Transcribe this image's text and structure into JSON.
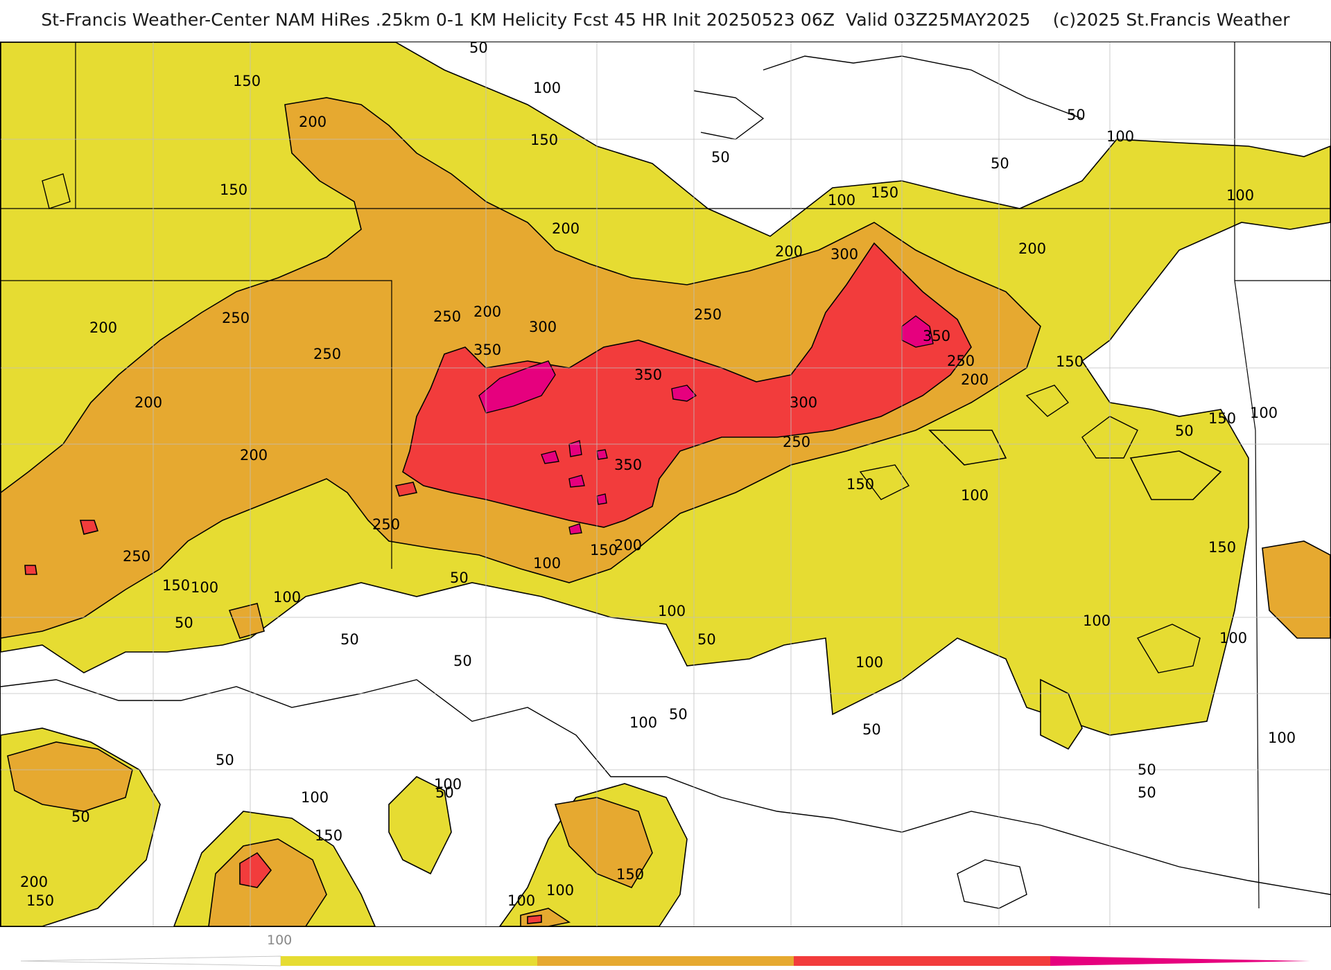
{
  "header": {
    "title": "St-Francis Weather-Center NAM HiRes .25km 0-1 KM Helicity Fcst 45 HR Init 20250523 06Z  Valid 03Z25MAY2025    (c)2025 St.Francis Weather"
  },
  "legend": {
    "tick_label": "100",
    "colors": {
      "band_100_150": "#e6dc32",
      "band_150_250": "#e6a930",
      "band_250_350": "#f23c3c",
      "band_350_plus": "#e6007e",
      "contour_line": "#000000",
      "boundary_line": "#bfbfbf"
    }
  },
  "contour_labels": [
    "50",
    "150",
    "100",
    "200",
    "150",
    "150",
    "50",
    "50",
    "50",
    "100",
    "100",
    "150",
    "200",
    "200",
    "200",
    "100",
    "200",
    "300",
    "250",
    "250",
    "200",
    "250",
    "300",
    "350",
    "350",
    "250",
    "250",
    "350",
    "200",
    "150",
    "200",
    "250",
    "300",
    "200",
    "150",
    "100",
    "350",
    "150",
    "250",
    "100",
    "150",
    "50",
    "100",
    "150",
    "200",
    "250",
    "150",
    "100",
    "100",
    "100",
    "50",
    "50",
    "50",
    "100",
    "50",
    "50",
    "100",
    "100",
    "100",
    "100",
    "50",
    "50",
    "100",
    "50",
    "100",
    "50",
    "50",
    "150",
    "200",
    "150",
    "100",
    "100",
    "50",
    "150",
    "50"
  ]
}
